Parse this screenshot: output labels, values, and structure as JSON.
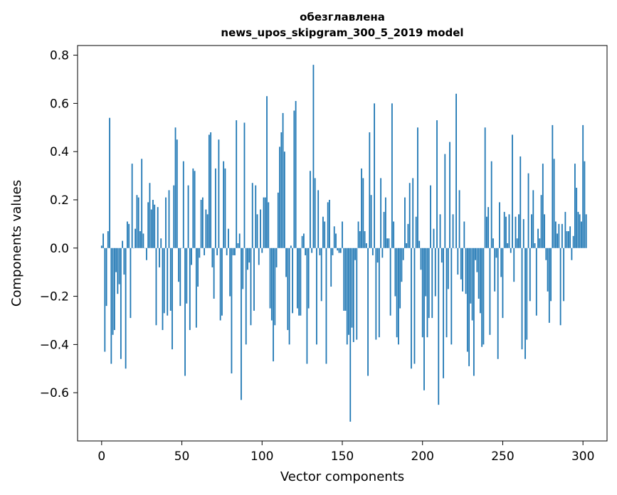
{
  "chart_data": {
    "type": "bar",
    "title_lines": [
      "обезглавлена",
      "news_upos_skipgram_300_5_2019 model"
    ],
    "xlabel": "Vector components",
    "ylabel": "Components values",
    "xlim": [
      -15,
      315
    ],
    "ylim": [
      -0.8,
      0.84
    ],
    "xticks": [
      0,
      50,
      100,
      150,
      200,
      250,
      300
    ],
    "yticks": [
      0.8,
      0.6,
      0.4,
      0.2,
      0.0,
      -0.2,
      -0.4,
      -0.6
    ],
    "ytick_labels": [
      "0.8",
      "0.6",
      "0.4",
      "0.2",
      "0.0",
      "−0.2",
      "−0.4",
      "−0.6"
    ],
    "bar_color": "#1f77b4",
    "grid": false,
    "values": [
      0.01,
      0.06,
      -0.43,
      -0.24,
      0.07,
      0.54,
      -0.48,
      -0.36,
      -0.34,
      -0.1,
      -0.19,
      -0.15,
      -0.46,
      0.03,
      -0.11,
      -0.5,
      0.11,
      0.1,
      -0.29,
      0.35,
      0.0,
      0.08,
      0.22,
      0.21,
      0.07,
      0.37,
      0.06,
      0.0,
      -0.05,
      0.19,
      0.27,
      0.16,
      0.2,
      0.18,
      -0.32,
      0.17,
      -0.08,
      0.04,
      -0.34,
      -0.27,
      0.21,
      -0.28,
      0.24,
      -0.26,
      -0.42,
      0.26,
      0.5,
      0.45,
      -0.14,
      -0.24,
      0.0,
      0.36,
      -0.53,
      -0.23,
      0.26,
      -0.34,
      -0.07,
      0.33,
      0.32,
      -0.33,
      -0.16,
      -0.04,
      0.2,
      0.21,
      -0.03,
      0.16,
      0.14,
      0.47,
      0.48,
      -0.08,
      -0.21,
      0.33,
      -0.03,
      0.45,
      -0.3,
      -0.28,
      0.36,
      0.33,
      -0.03,
      0.08,
      -0.2,
      -0.52,
      -0.03,
      -0.03,
      0.53,
      0.02,
      0.06,
      -0.63,
      -0.17,
      0.52,
      -0.4,
      -0.09,
      -0.06,
      -0.32,
      0.27,
      -0.26,
      0.26,
      0.14,
      -0.07,
      0.16,
      -0.02,
      0.21,
      0.21,
      0.63,
      0.19,
      -0.25,
      -0.3,
      -0.47,
      -0.32,
      -0.08,
      0.23,
      0.42,
      0.48,
      0.56,
      0.4,
      -0.12,
      -0.34,
      -0.4,
      0.01,
      -0.27,
      0.57,
      0.61,
      -0.25,
      -0.28,
      -0.28,
      0.05,
      0.06,
      -0.03,
      -0.48,
      -0.25,
      0.32,
      -0.02,
      0.76,
      0.29,
      -0.4,
      0.24,
      -0.03,
      -0.22,
      0.13,
      0.11,
      -0.48,
      0.19,
      0.2,
      -0.16,
      -0.03,
      0.09,
      0.06,
      -0.01,
      -0.02,
      -0.02,
      0.11,
      -0.26,
      -0.26,
      -0.4,
      -0.36,
      -0.72,
      -0.33,
      -0.39,
      -0.05,
      -0.38,
      0.11,
      0.07,
      0.33,
      0.29,
      0.07,
      0.02,
      -0.53,
      0.48,
      0.22,
      -0.03,
      0.6,
      -0.38,
      -0.06,
      -0.37,
      0.29,
      -0.04,
      0.15,
      0.21,
      0.04,
      0.04,
      -0.28,
      0.6,
      0.11,
      -0.2,
      -0.37,
      -0.4,
      -0.25,
      -0.14,
      -0.05,
      0.21,
      0.02,
      0.1,
      0.27,
      -0.5,
      0.29,
      -0.48,
      0.13,
      0.5,
      0.03,
      -0.09,
      -0.37,
      -0.59,
      -0.2,
      -0.37,
      -0.29,
      0.26,
      -0.29,
      0.08,
      -0.2,
      0.53,
      -0.65,
      0.14,
      -0.06,
      -0.54,
      0.39,
      -0.37,
      -0.17,
      0.44,
      -0.4,
      0.14,
      0.0,
      0.64,
      -0.11,
      0.24,
      -0.13,
      -0.18,
      0.11,
      -0.19,
      -0.43,
      -0.49,
      -0.23,
      -0.3,
      -0.53,
      -0.05,
      -0.1,
      -0.21,
      -0.27,
      -0.41,
      -0.4,
      0.5,
      0.13,
      0.17,
      -0.36,
      0.36,
      0.04,
      -0.18,
      -0.04,
      -0.46,
      0.19,
      -0.12,
      -0.29,
      0.15,
      0.13,
      0.02,
      0.14,
      -0.02,
      0.47,
      -0.14,
      0.13,
      0.04,
      0.14,
      0.38,
      -0.42,
      0.12,
      -0.46,
      -0.38,
      0.31,
      -0.22,
      0.14,
      0.24,
      0.02,
      -0.28,
      0.08,
      0.04,
      0.22,
      0.35,
      0.14,
      -0.05,
      -0.18,
      -0.31,
      -0.22,
      0.51,
      0.37,
      0.11,
      0.06,
      0.1,
      -0.32,
      0.1,
      -0.22,
      0.15,
      0.07,
      0.07,
      0.09,
      -0.05,
      0.05,
      0.35,
      0.25,
      0.15,
      0.14,
      0.11,
      0.51,
      0.36,
      0.14
    ]
  }
}
